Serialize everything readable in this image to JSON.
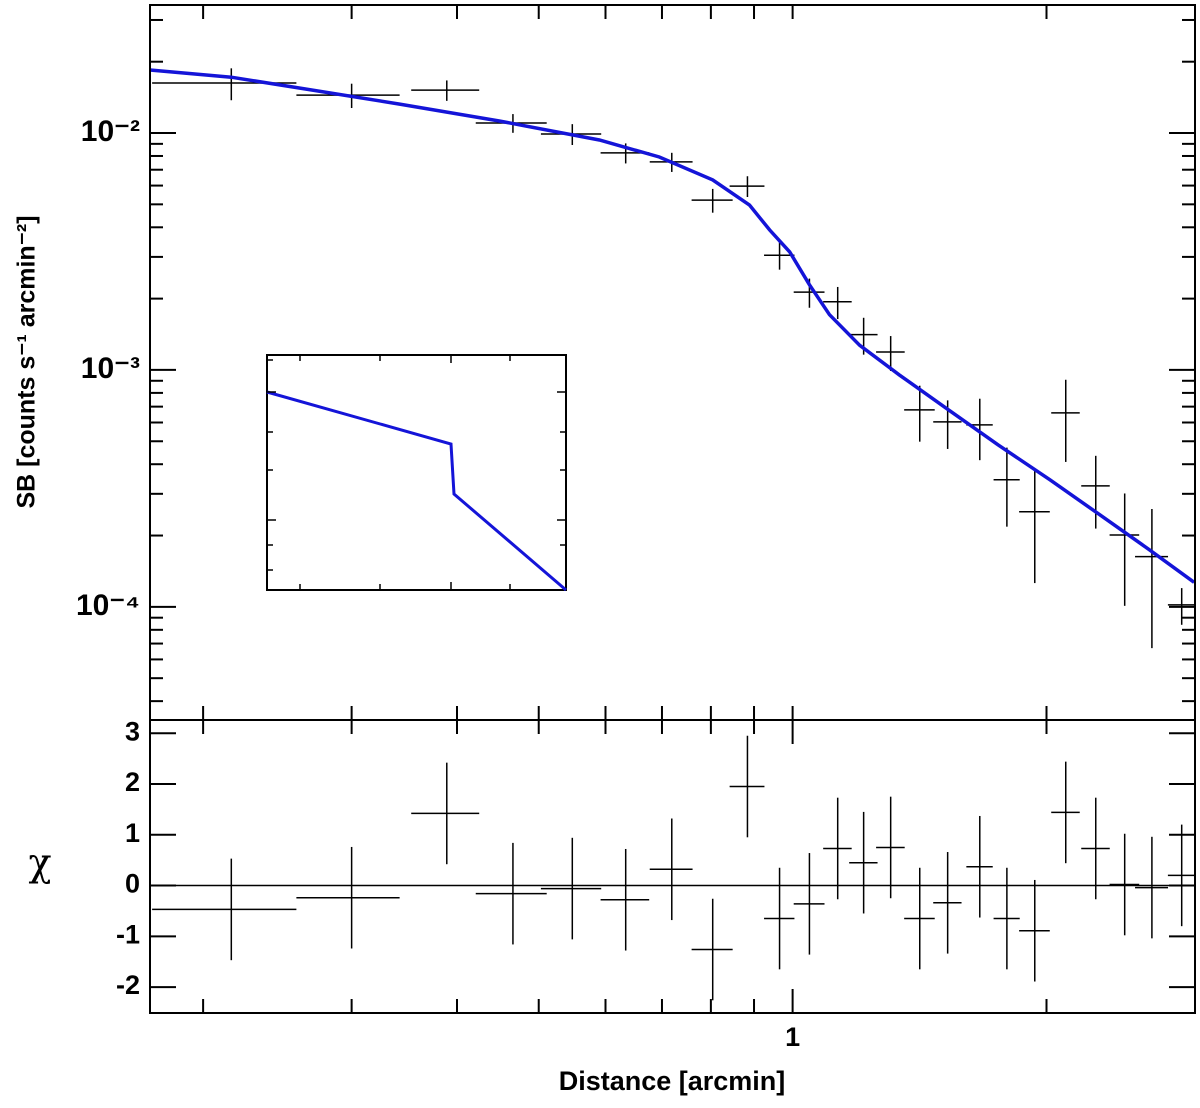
{
  "chart_data": [
    {
      "type": "errorbar",
      "ylabel": "SB [counts s⁻¹ arcmin⁻²]",
      "xlog": true,
      "ylog": true,
      "xlim": [
        0.173,
        3.0
      ],
      "ylim": [
        3.33e-05,
        0.0347
      ],
      "xtick_marks": [
        0.2,
        0.3,
        0.4,
        0.5,
        0.6,
        0.7,
        0.8,
        0.9,
        1,
        2,
        3
      ],
      "yticks": [
        {
          "value": 0.01,
          "label": "10⁻²"
        },
        {
          "value": 0.001,
          "label": "10⁻³"
        },
        {
          "value": 0.0001,
          "label": "10⁻⁴"
        }
      ],
      "yminor_ticks": [
        4e-05,
        5e-05,
        6e-05,
        7e-05,
        8e-05,
        9e-05,
        0.0002,
        0.0003,
        0.0004,
        0.0005,
        0.0006,
        0.0007,
        0.0008,
        0.0009,
        0.002,
        0.003,
        0.004,
        0.005,
        0.006,
        0.007,
        0.008,
        0.009,
        0.02,
        0.03
      ],
      "points": {
        "color": "#000000",
        "x": [
          0.216,
          0.3,
          0.389,
          0.466,
          0.548,
          0.634,
          0.719,
          0.804,
          0.884,
          0.965,
          1.047,
          1.131,
          1.214,
          1.307,
          1.415,
          1.527,
          1.667,
          1.795,
          1.937,
          2.108,
          2.288,
          2.476,
          2.667,
          2.893
        ],
        "xerr": [
          0.042,
          0.042,
          0.036,
          0.045,
          0.045,
          0.042,
          0.042,
          0.045,
          0.042,
          0.04,
          0.044,
          0.044,
          0.047,
          0.051,
          0.059,
          0.059,
          0.06,
          0.064,
          0.081,
          0.082,
          0.089,
          0.1,
          0.12,
          0.107
        ],
        "values": [
          0.01625,
          0.01445,
          0.01517,
          0.01102,
          0.0099,
          0.00824,
          0.00755,
          0.00521,
          0.00597,
          0.00305,
          0.00213,
          0.00194,
          0.00141,
          0.00119,
          0.000678,
          0.000604,
          0.000586,
          0.000344,
          0.000252,
          0.000659,
          0.000324,
          0.000201,
          0.000163,
          0.000102
        ],
        "yerr": [
          0.0025,
          0.0017,
          0.0015,
          0.001,
          0.001,
          0.0008,
          0.0007,
          0.0006,
          0.0006,
          0.0004,
          0.0003,
          0.0003,
          0.00025,
          0.0002,
          0.00018,
          0.00014,
          0.00017,
          0.000126,
          0.000126,
          0.00025,
          0.00011,
          0.0001,
          9.6e-05,
          1.8e-05
        ]
      },
      "model": {
        "color": "#1414d8",
        "x": [
          0.173,
          0.216,
          0.26,
          0.342,
          0.449,
          0.59,
          0.695,
          0.804,
          0.889,
          0.939,
          0.992,
          1.047,
          1.106,
          1.201,
          1.338,
          1.531,
          1.752,
          2.018,
          2.313,
          2.65,
          2.993
        ],
        "values": [
          0.01845,
          0.0172,
          0.01549,
          0.01325,
          0.01124,
          0.00934,
          0.00792,
          0.00634,
          0.00497,
          0.0039,
          0.00315,
          0.00229,
          0.00171,
          0.00127,
          0.000953,
          0.000678,
          0.000483,
          0.000344,
          0.000245,
          0.000174,
          0.000127
        ]
      }
    },
    {
      "type": "errorbar",
      "ylabel": "χ",
      "xlabel": "Distance [arcmin]",
      "xlog": true,
      "xlim": [
        0.173,
        3.0
      ],
      "ylim": [
        -2.51,
        3.26
      ],
      "xticks": [
        1
      ],
      "xminor_ticks": [
        0.2,
        0.3,
        0.4,
        0.5,
        0.6,
        0.7,
        0.8,
        0.9,
        2,
        3
      ],
      "yticks": [
        3,
        2,
        1,
        0,
        -1,
        -2
      ],
      "hline": 0,
      "points": {
        "color": "#000000",
        "x": [
          0.216,
          0.3,
          0.389,
          0.466,
          0.548,
          0.634,
          0.719,
          0.804,
          0.884,
          0.965,
          1.047,
          1.131,
          1.214,
          1.307,
          1.415,
          1.527,
          1.667,
          1.795,
          1.937,
          2.108,
          2.288,
          2.476,
          2.667,
          2.893
        ],
        "xerr": [
          0.042,
          0.042,
          0.036,
          0.045,
          0.045,
          0.042,
          0.042,
          0.045,
          0.042,
          0.04,
          0.044,
          0.044,
          0.047,
          0.051,
          0.059,
          0.059,
          0.06,
          0.064,
          0.081,
          0.082,
          0.089,
          0.1,
          0.12,
          0.107
        ],
        "values": [
          -0.47,
          -0.24,
          1.42,
          -0.16,
          -0.06,
          -0.28,
          0.32,
          -1.26,
          1.95,
          -0.65,
          -0.36,
          0.73,
          0.45,
          0.75,
          -0.65,
          -0.34,
          0.37,
          -0.65,
          -0.89,
          1.44,
          0.73,
          0.02,
          -0.04,
          0.2
        ],
        "yerr": [
          1,
          1,
          1,
          1,
          1,
          1,
          1,
          1,
          1,
          1,
          1,
          1,
          1,
          1,
          1,
          1,
          1,
          1,
          1,
          1,
          1,
          1,
          1,
          1
        ]
      }
    }
  ]
}
